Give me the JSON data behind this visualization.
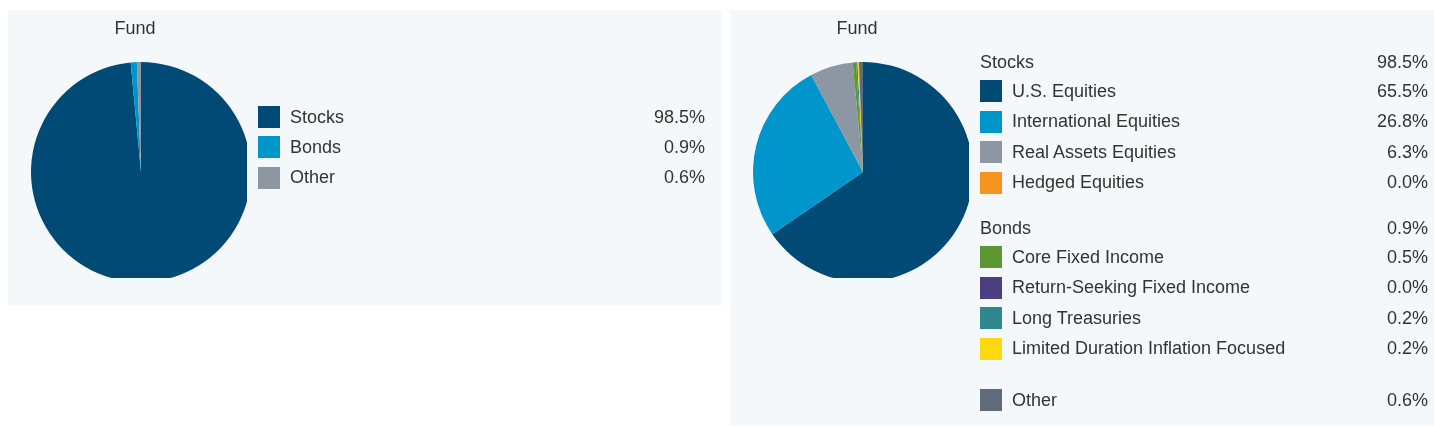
{
  "chart_data": [
    {
      "type": "pie",
      "title": "Fund",
      "categories": [
        "Stocks",
        "Bonds",
        "Other"
      ],
      "values": [
        98.5,
        0.9,
        0.6
      ],
      "value_labels": [
        "98.5%",
        "0.9%",
        "0.6%"
      ],
      "colors": [
        "#004a75",
        "#0096cc",
        "#8c97a3"
      ],
      "legend": "right"
    },
    {
      "type": "pie",
      "title": "Fund",
      "categories": [
        "U.S. Equities",
        "International Equities",
        "Real Assets Equities",
        "Hedged Equities",
        "Core Fixed Income",
        "Return-Seeking Fixed Income",
        "Long Treasuries",
        "Limited Duration Inflation Focused",
        "Other"
      ],
      "values": [
        65.5,
        26.8,
        6.3,
        0.0,
        0.5,
        0.0,
        0.2,
        0.2,
        0.6
      ],
      "value_labels": [
        "65.5%",
        "26.8%",
        "6.3%",
        "0.0%",
        "0.5%",
        "0.0%",
        "0.2%",
        "0.2%",
        "0.6%"
      ],
      "colors": [
        "#004a75",
        "#0096cc",
        "#8c97a3",
        "#f7941d",
        "#5e9732",
        "#4d3e7f",
        "#30868f",
        "#ffd90f",
        "#5f6b7a"
      ],
      "legend": "right",
      "annotations": [
        "Stocks",
        "98.5%",
        "Bonds",
        "0.9%"
      ]
    }
  ]
}
